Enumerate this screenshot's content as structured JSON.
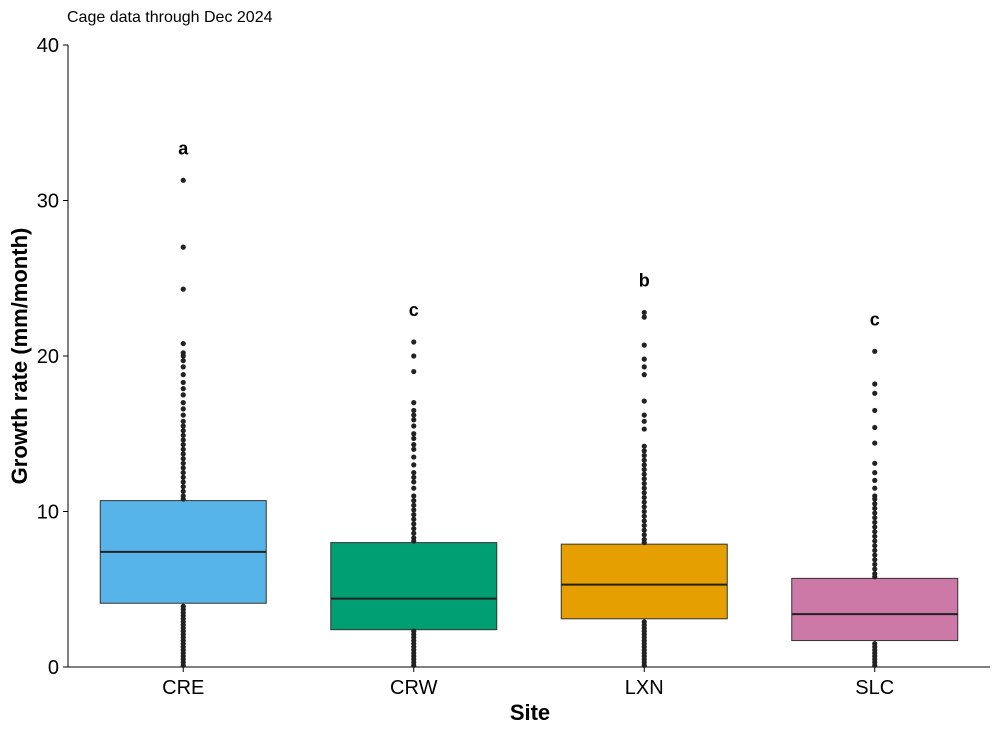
{
  "chart_data": {
    "type": "box",
    "subtitle": "Cage data through Dec 2024",
    "xlabel": "Site",
    "ylabel": "Growth rate (mm/month)",
    "ylim": [
      0,
      40
    ],
    "yticks": [
      0,
      10,
      20,
      30,
      40
    ],
    "grid": false,
    "categories": [
      "CRE",
      "CRW",
      "LXN",
      "SLC"
    ],
    "boxes": [
      {
        "category": "CRE",
        "color": "#56B4E9",
        "q1": 4.1,
        "median": 7.4,
        "q3": 10.7,
        "whisker_low": 0,
        "whisker_high": 10.7,
        "letter": "a",
        "outliers": [
          0.1,
          0.3,
          0.5,
          0.7,
          0.9,
          1.1,
          1.3,
          1.5,
          1.7,
          1.9,
          2.1,
          2.3,
          2.5,
          2.7,
          2.9,
          3.1,
          3.3,
          3.5,
          3.7,
          3.9,
          10.8,
          11.0,
          11.3,
          11.6,
          11.9,
          12.2,
          12.5,
          12.8,
          13.1,
          13.4,
          13.7,
          14.0,
          14.3,
          14.6,
          14.9,
          15.2,
          15.5,
          15.8,
          16.2,
          16.6,
          17.0,
          17.5,
          17.9,
          18.3,
          18.8,
          19.3,
          19.7,
          20.0,
          20.2,
          20.8,
          24.3,
          27.0,
          31.3
        ]
      },
      {
        "category": "CRW",
        "color": "#009E73",
        "q1": 2.4,
        "median": 4.4,
        "q3": 8.0,
        "whisker_low": 0,
        "whisker_high": 8.0,
        "letter": "c",
        "outliers": [
          0.1,
          0.3,
          0.5,
          0.7,
          0.9,
          1.1,
          1.3,
          1.5,
          1.7,
          1.9,
          2.1,
          2.3,
          8.1,
          8.3,
          8.6,
          8.9,
          9.2,
          9.5,
          9.8,
          10.1,
          10.4,
          10.7,
          11.0,
          11.5,
          11.9,
          12.2,
          12.5,
          13.0,
          13.5,
          14.0,
          14.3,
          14.7,
          15.0,
          15.5,
          15.9,
          16.2,
          16.5,
          17.0,
          19.0,
          20.0,
          20.9
        ]
      },
      {
        "category": "LXN",
        "color": "#E69F00",
        "q1": 3.1,
        "median": 5.3,
        "q3": 7.9,
        "whisker_low": 0,
        "whisker_high": 7.9,
        "letter": "b",
        "outliers": [
          0.1,
          0.3,
          0.5,
          0.7,
          0.9,
          1.1,
          1.3,
          1.5,
          1.7,
          1.9,
          2.1,
          2.3,
          2.5,
          2.7,
          2.9,
          8.0,
          8.2,
          8.5,
          8.8,
          9.1,
          9.4,
          9.7,
          10.0,
          10.3,
          10.6,
          10.9,
          11.2,
          11.5,
          11.8,
          12.1,
          12.4,
          12.7,
          13.0,
          13.3,
          13.6,
          13.9,
          14.2,
          15.3,
          15.8,
          16.2,
          17.1,
          18.8,
          19.3,
          19.8,
          20.7,
          22.5,
          22.8
        ]
      },
      {
        "category": "SLC",
        "color": "#CC79A7",
        "q1": 1.7,
        "median": 3.4,
        "q3": 5.7,
        "whisker_low": 0,
        "whisker_high": 5.7,
        "letter": "c",
        "outliers": [
          0.1,
          0.3,
          0.5,
          0.7,
          0.9,
          1.1,
          1.3,
          1.5,
          5.8,
          6.0,
          6.3,
          6.6,
          6.9,
          7.2,
          7.5,
          7.8,
          8.1,
          8.4,
          8.7,
          9.0,
          9.3,
          9.6,
          9.9,
          10.2,
          10.5,
          10.8,
          11.0,
          11.5,
          12.0,
          12.5,
          13.1,
          14.4,
          15.4,
          16.5,
          17.6,
          18.2,
          20.3
        ]
      }
    ]
  }
}
